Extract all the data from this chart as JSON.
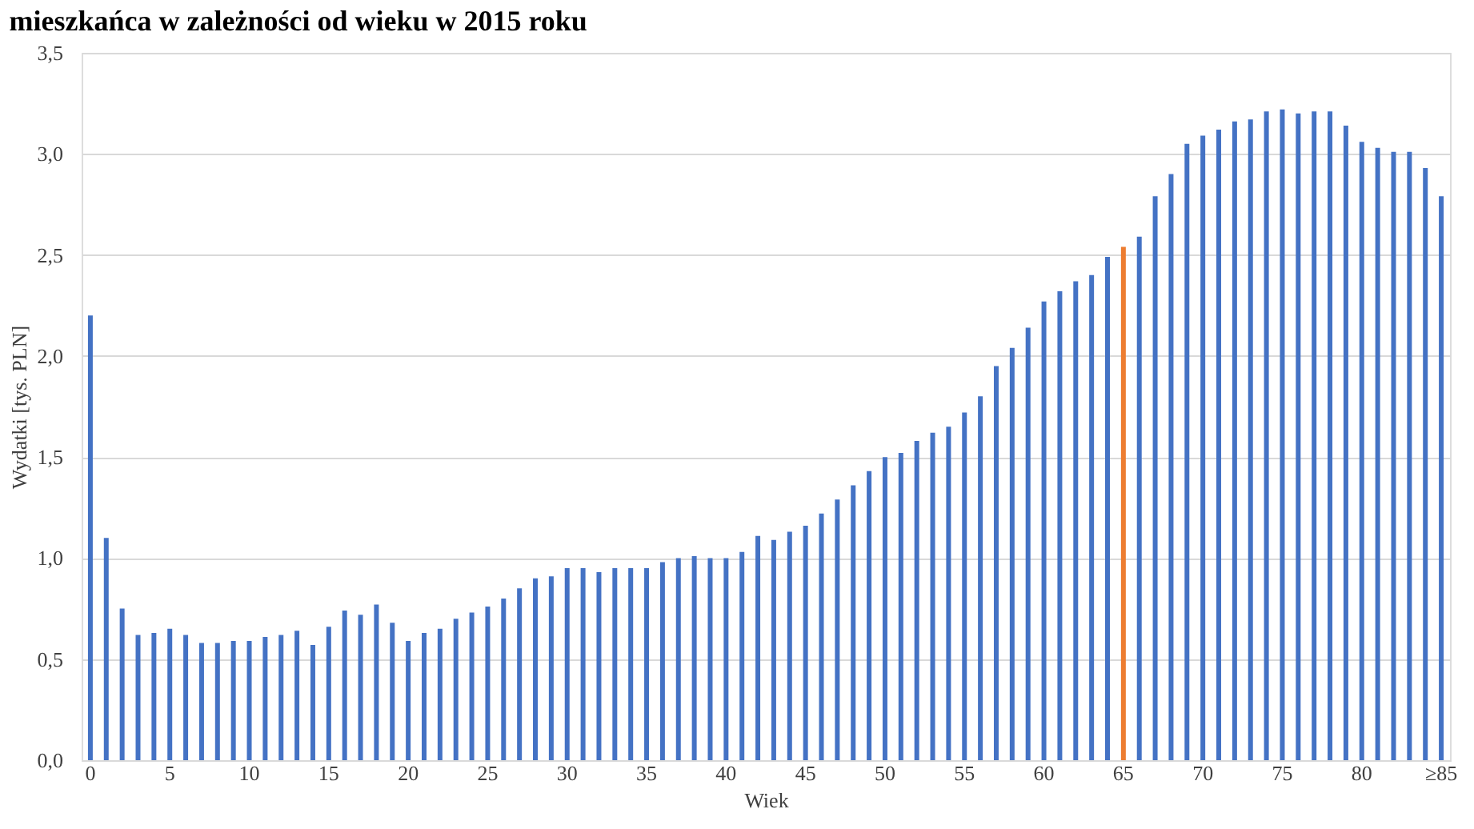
{
  "chart_data": {
    "type": "bar",
    "title": "mieszkańca w zależności od wieku w 2015 roku",
    "xlabel": "Wiek",
    "ylabel": "Wydatki [tys. PLN]",
    "categories": [
      "0",
      null,
      null,
      null,
      null,
      "5",
      null,
      null,
      null,
      null,
      "10",
      null,
      null,
      null,
      null,
      "15",
      null,
      null,
      null,
      null,
      "20",
      null,
      null,
      null,
      null,
      "25",
      null,
      null,
      null,
      null,
      "30",
      null,
      null,
      null,
      null,
      "35",
      null,
      null,
      null,
      null,
      "40",
      null,
      null,
      null,
      null,
      "45",
      null,
      null,
      null,
      null,
      "50",
      null,
      null,
      null,
      null,
      "55",
      null,
      null,
      null,
      null,
      "60",
      null,
      null,
      null,
      null,
      "65",
      null,
      null,
      null,
      null,
      "70",
      null,
      null,
      null,
      null,
      "75",
      null,
      null,
      null,
      null,
      "80",
      null,
      null,
      null,
      null,
      "≥85"
    ],
    "values": [
      2.2,
      1.1,
      0.75,
      0.62,
      0.63,
      0.65,
      0.62,
      0.58,
      0.58,
      0.59,
      0.59,
      0.61,
      0.62,
      0.64,
      0.57,
      0.66,
      0.74,
      0.72,
      0.77,
      0.68,
      0.59,
      0.63,
      0.65,
      0.7,
      0.73,
      0.76,
      0.8,
      0.85,
      0.9,
      0.91,
      0.95,
      0.95,
      0.93,
      0.95,
      0.95,
      0.95,
      0.98,
      1.0,
      1.01,
      1.0,
      1.0,
      1.03,
      1.11,
      1.09,
      1.13,
      1.16,
      1.22,
      1.29,
      1.36,
      1.43,
      1.5,
      1.52,
      1.58,
      1.62,
      1.65,
      1.72,
      1.8,
      1.95,
      2.04,
      2.14,
      2.27,
      2.32,
      2.37,
      2.4,
      2.49,
      2.54,
      2.59,
      2.79,
      2.9,
      3.05,
      3.09,
      3.12,
      3.16,
      3.17,
      3.21,
      3.22,
      3.2,
      3.21,
      3.21,
      3.14,
      3.06,
      3.03,
      3.01,
      3.01,
      2.93,
      2.79
    ],
    "colors": [
      "#4472c4",
      "#4472c4",
      "#4472c4",
      "#4472c4",
      "#4472c4",
      "#4472c4",
      "#4472c4",
      "#4472c4",
      "#4472c4",
      "#4472c4",
      "#4472c4",
      "#4472c4",
      "#4472c4",
      "#4472c4",
      "#4472c4",
      "#4472c4",
      "#4472c4",
      "#4472c4",
      "#4472c4",
      "#4472c4",
      "#4472c4",
      "#4472c4",
      "#4472c4",
      "#4472c4",
      "#4472c4",
      "#4472c4",
      "#4472c4",
      "#4472c4",
      "#4472c4",
      "#4472c4",
      "#4472c4",
      "#4472c4",
      "#4472c4",
      "#4472c4",
      "#4472c4",
      "#4472c4",
      "#4472c4",
      "#4472c4",
      "#4472c4",
      "#4472c4",
      "#4472c4",
      "#4472c4",
      "#4472c4",
      "#4472c4",
      "#4472c4",
      "#4472c4",
      "#4472c4",
      "#4472c4",
      "#4472c4",
      "#4472c4",
      "#4472c4",
      "#4472c4",
      "#4472c4",
      "#4472c4",
      "#4472c4",
      "#4472c4",
      "#4472c4",
      "#4472c4",
      "#4472c4",
      "#4472c4",
      "#4472c4",
      "#4472c4",
      "#4472c4",
      "#4472c4",
      "#4472c4",
      "#ed7d31",
      "#4472c4",
      "#4472c4",
      "#4472c4",
      "#4472c4",
      "#4472c4",
      "#4472c4",
      "#4472c4",
      "#4472c4",
      "#4472c4",
      "#4472c4",
      "#4472c4",
      "#4472c4",
      "#4472c4",
      "#4472c4",
      "#4472c4",
      "#4472c4",
      "#4472c4",
      "#4472c4",
      "#4472c4",
      "#4472c4"
    ],
    "ylim": [
      0,
      3.5
    ],
    "yticks": [
      {
        "value": 0,
        "label": "0,0"
      },
      {
        "value": 0.5,
        "label": "0,5"
      },
      {
        "value": 1.0,
        "label": "1,0"
      },
      {
        "value": 1.5,
        "label": "1,5"
      },
      {
        "value": 2.0,
        "label": "2,0"
      },
      {
        "value": 2.5,
        "label": "2,5"
      },
      {
        "value": 3.0,
        "label": "3,0"
      },
      {
        "value": 3.5,
        "label": "3,5"
      }
    ],
    "grid": "y"
  }
}
